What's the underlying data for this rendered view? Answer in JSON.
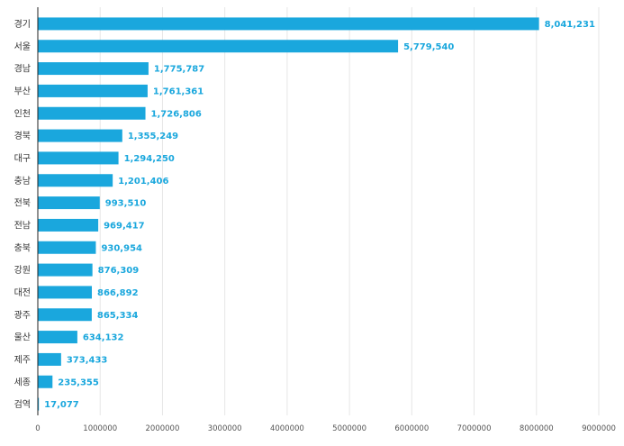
{
  "chart_data": {
    "type": "bar",
    "orientation": "horizontal",
    "categories": [
      "경기",
      "서울",
      "경남",
      "부산",
      "인천",
      "경북",
      "대구",
      "충남",
      "전북",
      "전남",
      "충북",
      "강원",
      "대전",
      "광주",
      "울산",
      "제주",
      "세종",
      "검역"
    ],
    "values": [
      8041231,
      5779540,
      1775787,
      1761361,
      1726806,
      1355249,
      1294250,
      1201406,
      993510,
      969417,
      930954,
      876309,
      866892,
      865334,
      634132,
      373433,
      235355,
      17077
    ],
    "value_labels": [
      "8,041,231",
      "5,779,540",
      "1,775,787",
      "1,761,361",
      "1,726,806",
      "1,355,249",
      "1,294,250",
      "1,201,406",
      "993,510",
      "969,417",
      "930,954",
      "876,309",
      "866,892",
      "865,334",
      "634,132",
      "373,433",
      "235,355",
      "17,077"
    ],
    "x_ticks": [
      0,
      1000000,
      2000000,
      3000000,
      4000000,
      5000000,
      6000000,
      7000000,
      8000000,
      9000000
    ],
    "x_tick_labels": [
      "0",
      "1000000",
      "2000000",
      "3000000",
      "4000000",
      "5000000",
      "6000000",
      "7000000",
      "8000000",
      "9000000"
    ],
    "xlim": [
      0,
      9000000
    ],
    "title": "",
    "xlabel": "",
    "ylabel": "",
    "grid": "vertical",
    "legend": "none",
    "bar_color": "#1aa7dd",
    "value_label_color": "#1aa7dd"
  }
}
